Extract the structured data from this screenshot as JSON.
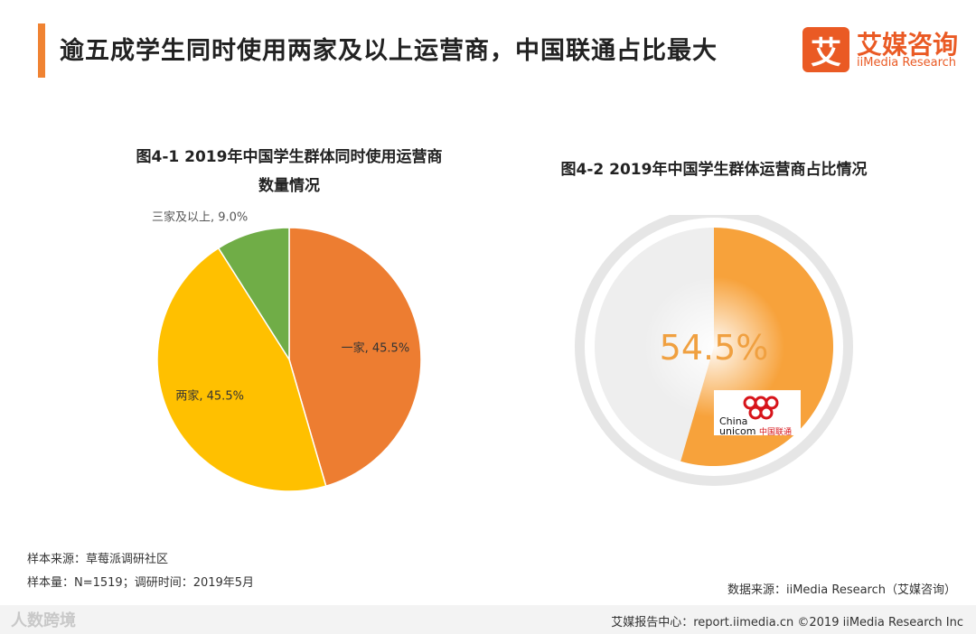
{
  "header": {
    "title": "逾五成学生同时使用两家及以上运营商，中国联通占比最大",
    "logo_mark": "艾",
    "logo_cn": "艾媒咨询",
    "logo_en": "iiMedia Research"
  },
  "chart_data": [
    {
      "type": "pie",
      "title": "图4-1 2019年中国学生群体同时使用运营商",
      "subtitle": "数量情况",
      "categories": [
        "一家",
        "两家",
        "三家及以上"
      ],
      "values": [
        45.5,
        45.5,
        9.0
      ],
      "unit": "%",
      "colors": [
        "#ed7d31",
        "#ffc000",
        "#70ad47"
      ],
      "labels": [
        "一家, 45.5%",
        "两家, 45.5%",
        "三家及以上, 9.0%"
      ]
    },
    {
      "type": "pie",
      "title": "图4-2 2019年中国学生群体运营商占比情况",
      "categories": [
        "中国联通"
      ],
      "values": [
        54.5
      ],
      "unit": "%",
      "center_label": "54.5%",
      "colors": [
        "#f7a23b",
        "#eeeeee"
      ],
      "brand": {
        "line1": "China",
        "line2": "unicom",
        "cn": "中国联通"
      }
    }
  ],
  "notes": {
    "source": "样本来源：草莓派调研社区",
    "sample": "样本量：N=1519；调研时间：2019年5月",
    "data_source": "数据来源：iiMedia Research（艾媒咨询）"
  },
  "footer": {
    "watermark": "人数跨境",
    "right": "艾媒报告中心：report.iimedia.cn ©2019 iiMedia Research Inc"
  }
}
